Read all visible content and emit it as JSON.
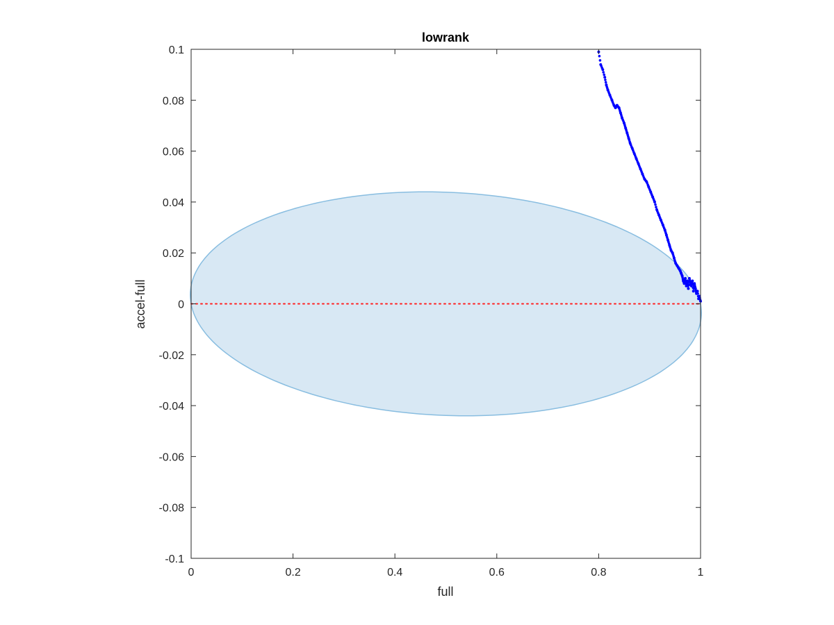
{
  "chart_data": {
    "type": "scatter",
    "title": "lowrank",
    "xlabel": "full",
    "ylabel": "accel-full",
    "xlim": [
      0,
      1
    ],
    "ylim": [
      -0.1,
      0.1
    ],
    "xticks": [
      0,
      0.2,
      0.4,
      0.6,
      0.8,
      1
    ],
    "xtick_labels": [
      "0",
      "0.2",
      "0.4",
      "0.6",
      "0.8",
      "1"
    ],
    "yticks": [
      -0.1,
      -0.08,
      -0.06,
      -0.04,
      -0.02,
      0,
      0.02,
      0.04,
      0.06,
      0.08,
      0.1
    ],
    "ytick_labels": [
      "-0.1",
      "-0.08",
      "-0.06",
      "-0.04",
      "-0.02",
      "0",
      "0.02",
      "0.04",
      "0.06",
      "0.08",
      "0.1"
    ],
    "grid": false,
    "region": {
      "shape": "ellipse",
      "center": [
        0.5,
        0
      ],
      "x_extent": [
        0,
        1
      ],
      "y_top_max": 0.044,
      "y_top_max_at": 0.46,
      "y_bottom_min": -0.044,
      "y_bottom_min_at": 0.54,
      "fill": "#d8e8f4",
      "edge": "#88bde0"
    },
    "reference_line": {
      "y": 0,
      "x": [
        0,
        1
      ],
      "style": "dotted",
      "color": "#ff2020"
    },
    "series": [
      {
        "color": "#0000ff",
        "marker": "dot",
        "x": [
          0.8,
          0.804,
          0.808,
          0.812,
          0.815,
          0.818,
          0.822,
          0.826,
          0.83,
          0.833,
          0.836,
          0.84,
          0.843,
          0.846,
          0.85,
          0.853,
          0.856,
          0.859,
          0.862,
          0.866,
          0.87,
          0.874,
          0.878,
          0.882,
          0.886,
          0.89,
          0.894,
          0.898,
          0.902,
          0.906,
          0.91,
          0.914,
          0.918,
          0.922,
          0.926,
          0.93,
          0.933,
          0.936,
          0.939,
          0.942,
          0.945,
          0.948,
          0.951,
          0.954,
          0.957,
          0.96,
          0.962,
          0.964,
          0.966,
          0.968,
          0.97,
          0.972,
          0.974,
          0.976,
          0.978,
          0.98,
          0.982,
          0.984,
          0.986,
          0.988,
          0.99,
          0.992,
          0.994,
          0.996,
          0.998,
          1.0
        ],
        "y": [
          0.099,
          0.094,
          0.092,
          0.089,
          0.086,
          0.084,
          0.082,
          0.08,
          0.078,
          0.077,
          0.078,
          0.077,
          0.075,
          0.073,
          0.071,
          0.069,
          0.067,
          0.065,
          0.063,
          0.061,
          0.059,
          0.057,
          0.055,
          0.053,
          0.051,
          0.049,
          0.048,
          0.046,
          0.044,
          0.042,
          0.04,
          0.037,
          0.035,
          0.033,
          0.031,
          0.029,
          0.027,
          0.025,
          0.023,
          0.021,
          0.02,
          0.018,
          0.016,
          0.015,
          0.014,
          0.013,
          0.012,
          0.011,
          0.009,
          0.008,
          0.01,
          0.007,
          0.009,
          0.006,
          0.01,
          0.008,
          0.007,
          0.009,
          0.005,
          0.008,
          0.006,
          0.004,
          0.005,
          0.002,
          0.003,
          0.001
        ]
      }
    ]
  }
}
